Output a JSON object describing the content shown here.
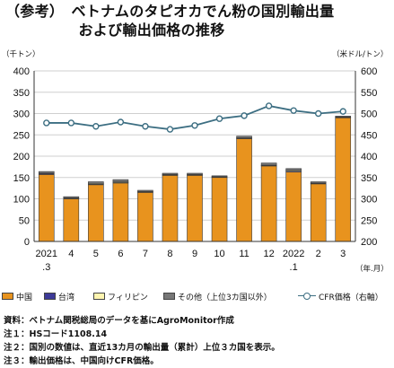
{
  "title": {
    "line1": "（参考）　ベトナムのタピオカでん粉の国別輸出量",
    "line2": "　　　　　および輸出価格の推移"
  },
  "chart_data": {
    "type": "bar",
    "stacked": true,
    "categories": [
      "2021\n.3",
      "4",
      "5",
      "6",
      "7",
      "8",
      "9",
      "10",
      "11",
      "12",
      "2022\n.1",
      "2",
      "3"
    ],
    "x_unit_label": "（年.月）",
    "y_left_label": "（千トン）",
    "y_right_label": "（米ドル/トン）",
    "y_left_ticks": [
      "0",
      "50",
      "100",
      "150",
      "200",
      "250",
      "300",
      "350",
      "400"
    ],
    "y_right_ticks": [
      "200",
      "250",
      "300",
      "350",
      "400",
      "450",
      "500",
      "550",
      "600"
    ],
    "ylim_left": [
      0,
      400
    ],
    "ylim_right": [
      200,
      600
    ],
    "grid": true,
    "legend_position": "bottom",
    "series": [
      {
        "name": "中国",
        "axis": "left",
        "color": "#e8931e",
        "values": [
          157,
          100,
          133,
          137,
          115,
          155,
          155,
          150,
          241,
          177,
          163,
          135,
          290
        ]
      },
      {
        "name": "台湾",
        "axis": "left",
        "color": "#3d3a98",
        "values": [
          2,
          1,
          1,
          1,
          1,
          1,
          1,
          1,
          1,
          1,
          2,
          1,
          1
        ]
      },
      {
        "name": "フィリピン",
        "axis": "left",
        "color": "#fff5b0",
        "values": [
          1,
          1,
          2,
          2,
          1,
          1,
          1,
          1,
          1,
          1,
          2,
          1,
          1
        ]
      },
      {
        "name": "その他（上位3カ国以外）",
        "axis": "left",
        "color": "#777777",
        "values": [
          4,
          3,
          4,
          5,
          3,
          3,
          3,
          2,
          4,
          5,
          4,
          3,
          2
        ]
      },
      {
        "name": "CFR価格（右軸）",
        "axis": "right",
        "type": "line",
        "color": "#3c6e82",
        "values": [
          478,
          478,
          470,
          480,
          470,
          463,
          472,
          488,
          495,
          518,
          507,
          500,
          505
        ]
      }
    ]
  },
  "notes": [
    "資料：ベトナム関税総局のデータを基にAgroMonitor作成",
    "注１：HSコード1108.14",
    "注２：国別の数値は、直近13カ月の輸出量（累計）上位３カ国を表示。",
    "注３：輸出価格は、中国向けCFR価格。"
  ]
}
